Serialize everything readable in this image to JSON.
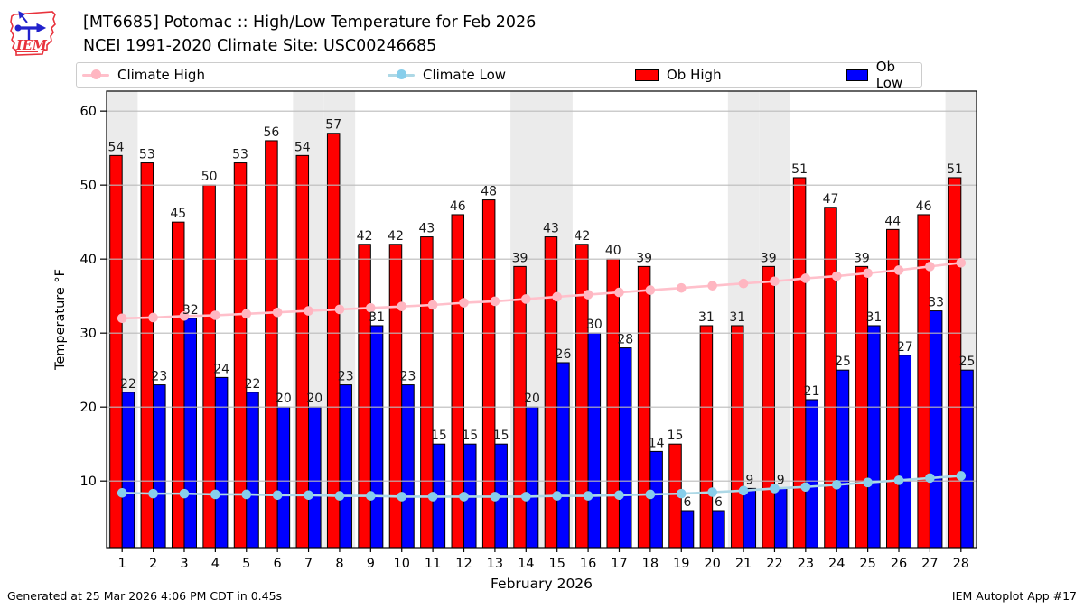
{
  "header": {
    "title_line1": "[MT6685] Potomac :: High/Low Temperature for Feb 2026",
    "title_line2": "NCEI 1991-2020 Climate Site: USC00246685",
    "logo_text": "IEM"
  },
  "legend": {
    "items": [
      {
        "label": "Climate High",
        "swatch": "line",
        "line_color": "#FFC0CB",
        "marker_color": "#FFB6C1"
      },
      {
        "label": "Climate Low",
        "swatch": "line",
        "line_color": "#ADD8E6",
        "marker_color": "#87CEEB"
      },
      {
        "label": "Ob High",
        "swatch": "box",
        "color": "#FF0000"
      },
      {
        "label": "Ob Low",
        "swatch": "box",
        "color": "#0000FF"
      }
    ]
  },
  "footer": {
    "left": "Generated at 25 Mar 2026 4:06 PM CDT in 0.45s",
    "right": "IEM Autoplot App #17"
  },
  "chart_data": {
    "type": "bar",
    "title": "[MT6685] Potomac :: High/Low Temperature for Feb 2026",
    "subtitle": "NCEI 1991-2020 Climate Site: USC00246685",
    "xlabel": "February 2026",
    "ylabel": "Temperature °F",
    "x": [
      1,
      2,
      3,
      4,
      5,
      6,
      7,
      8,
      9,
      10,
      11,
      12,
      13,
      14,
      15,
      16,
      17,
      18,
      19,
      20,
      21,
      22,
      23,
      24,
      25,
      26,
      27,
      28
    ],
    "ylim": [
      1,
      62.7
    ],
    "yticks": [
      10,
      20,
      30,
      40,
      50,
      60
    ],
    "grid": "horizontal",
    "legend_position": "top",
    "weekend_shaded_days": [
      1,
      7,
      8,
      14,
      15,
      21,
      22,
      28
    ],
    "series": [
      {
        "name": "Ob High",
        "type": "bar",
        "color": "#FF0000",
        "data_labels": true,
        "values": [
          54,
          53,
          45,
          50,
          53,
          56,
          54,
          57,
          42,
          42,
          43,
          46,
          48,
          39,
          43,
          42,
          40,
          39,
          15,
          31,
          31,
          39,
          51,
          47,
          39,
          44,
          46,
          51
        ]
      },
      {
        "name": "Ob Low",
        "type": "bar",
        "color": "#0000FF",
        "data_labels": true,
        "values": [
          22,
          23,
          32,
          24,
          22,
          20,
          20,
          23,
          31,
          23,
          15,
          15,
          15,
          20,
          26,
          30,
          28,
          14,
          6,
          6,
          9,
          9,
          21,
          25,
          31,
          27,
          33,
          25
        ]
      },
      {
        "name": "Climate High",
        "type": "line",
        "color": "#FFC0CB",
        "marker_color": "#FFB6C1",
        "values": [
          32.0,
          32.1,
          32.3,
          32.4,
          32.6,
          32.8,
          33.0,
          33.2,
          33.4,
          33.6,
          33.8,
          34.1,
          34.3,
          34.6,
          34.9,
          35.2,
          35.5,
          35.8,
          36.1,
          36.4,
          36.7,
          37.0,
          37.4,
          37.7,
          38.1,
          38.5,
          39.0,
          39.5
        ]
      },
      {
        "name": "Climate Low",
        "type": "line",
        "color": "#ADD8E6",
        "marker_color": "#87CEEB",
        "values": [
          8.4,
          8.3,
          8.3,
          8.2,
          8.2,
          8.1,
          8.1,
          8.0,
          8.0,
          7.9,
          7.9,
          7.9,
          7.9,
          7.9,
          8.0,
          8.0,
          8.1,
          8.2,
          8.3,
          8.5,
          8.7,
          9.0,
          9.2,
          9.5,
          9.8,
          10.1,
          10.4,
          10.7
        ]
      }
    ],
    "colors": {
      "weekend_band": "#EBEBEB",
      "grid": "#BBBBBB",
      "axis": "#000000"
    }
  }
}
